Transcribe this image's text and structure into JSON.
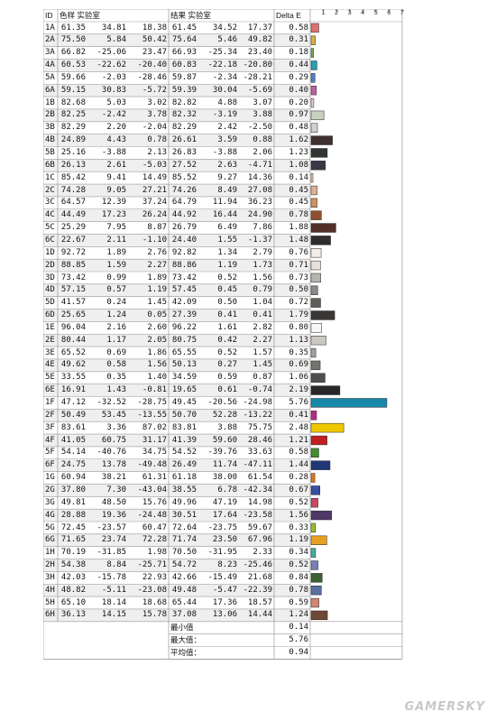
{
  "chart_data": {
    "type": "table",
    "headers": {
      "id": "ID",
      "lab_group": "色样 实验室",
      "result_group": "结果 实验室",
      "delta": "Delta E"
    },
    "x_ticks": [
      "1",
      "2",
      "3",
      "4",
      "5",
      "6",
      "7"
    ],
    "xlim": [
      0,
      7
    ],
    "rows": [
      {
        "id": "1A",
        "L": "61.35",
        "a": "34.81",
        "b": "18.38",
        "L2": "61.45",
        "a2": "34.52",
        "b2": "17.37",
        "de": 0.58,
        "color": "#e07070"
      },
      {
        "id": "2A",
        "L": "75.50",
        "a": "5.84",
        "b": "50.42",
        "L2": "75.64",
        "a2": "5.46",
        "b2": "49.82",
        "de": 0.31,
        "color": "#e0b040"
      },
      {
        "id": "3A",
        "L": "66.82",
        "a": "-25.06",
        "b": "23.47",
        "L2": "66.93",
        "a2": "-25.34",
        "b2": "23.40",
        "de": 0.18,
        "color": "#70b050"
      },
      {
        "id": "4A",
        "L": "60.53",
        "a": "-22.62",
        "b": "-20.40",
        "L2": "60.83",
        "a2": "-22.18",
        "b2": "-20.80",
        "de": 0.44,
        "color": "#20a0b0"
      },
      {
        "id": "5A",
        "L": "59.66",
        "a": "-2.03",
        "b": "-28.46",
        "L2": "59.87",
        "a2": "-2.34",
        "b2": "-28.21",
        "de": 0.29,
        "color": "#5080c0"
      },
      {
        "id": "6A",
        "L": "59.15",
        "a": "30.83",
        "b": "-5.72",
        "L2": "59.39",
        "a2": "30.04",
        "b2": "-5.69",
        "de": 0.4,
        "color": "#c060a0"
      },
      {
        "id": "1B",
        "L": "82.68",
        "a": "5.03",
        "b": "3.02",
        "L2": "82.82",
        "a2": "4.88",
        "b2": "3.07",
        "de": 0.2,
        "color": "#e8d0c8"
      },
      {
        "id": "2B",
        "L": "82.25",
        "a": "-2.42",
        "b": "3.78",
        "L2": "82.32",
        "a2": "-3.19",
        "b2": "3.88",
        "de": 0.97,
        "color": "#c8d0c0"
      },
      {
        "id": "3B",
        "L": "82.29",
        "a": "2.20",
        "b": "-2.04",
        "L2": "82.29",
        "a2": "2.42",
        "b2": "-2.50",
        "de": 0.48,
        "color": "#d0d0d8"
      },
      {
        "id": "4B",
        "L": "24.89",
        "a": "4.43",
        "b": "0.78",
        "L2": "26.61",
        "a2": "3.59",
        "b2": "0.88",
        "de": 1.62,
        "color": "#403030"
      },
      {
        "id": "5B",
        "L": "25.16",
        "a": "-3.88",
        "b": "2.13",
        "L2": "26.83",
        "a2": "-3.88",
        "b2": "2.06",
        "de": 1.23,
        "color": "#303830"
      },
      {
        "id": "6B",
        "L": "26.13",
        "a": "2.61",
        "b": "-5.03",
        "L2": "27.52",
        "a2": "2.63",
        "b2": "-4.71",
        "de": 1.08,
        "color": "#383848"
      },
      {
        "id": "1C",
        "L": "85.42",
        "a": "9.41",
        "b": "14.49",
        "L2": "85.52",
        "a2": "9.27",
        "b2": "14.36",
        "de": 0.14,
        "color": "#f0d0c0"
      },
      {
        "id": "2C",
        "L": "74.28",
        "a": "9.05",
        "b": "27.21",
        "L2": "74.26",
        "a2": "8.49",
        "b2": "27.08",
        "de": 0.45,
        "color": "#e0b090"
      },
      {
        "id": "3C",
        "L": "64.57",
        "a": "12.39",
        "b": "37.24",
        "L2": "64.79",
        "a2": "11.94",
        "b2": "36.23",
        "de": 0.45,
        "color": "#d09060"
      },
      {
        "id": "4C",
        "L": "44.49",
        "a": "17.23",
        "b": "26.24",
        "L2": "44.92",
        "a2": "16.44",
        "b2": "24.90",
        "de": 0.78,
        "color": "#905030"
      },
      {
        "id": "5C",
        "L": "25.29",
        "a": "7.95",
        "b": "8.87",
        "L2": "26.79",
        "a2": "6.49",
        "b2": "7.86",
        "de": 1.88,
        "color": "#503028"
      },
      {
        "id": "6C",
        "L": "22.67",
        "a": "2.11",
        "b": "-1.10",
        "L2": "24.40",
        "a2": "1.55",
        "b2": "-1.37",
        "de": 1.48,
        "color": "#302c30"
      },
      {
        "id": "1D",
        "L": "92.72",
        "a": "1.89",
        "b": "2.76",
        "L2": "92.82",
        "a2": "1.34",
        "b2": "2.79",
        "de": 0.76,
        "color": "#f4eee8"
      },
      {
        "id": "2D",
        "L": "88.85",
        "a": "1.59",
        "b": "2.27",
        "L2": "88.86",
        "a2": "1.19",
        "b2": "1.73",
        "de": 0.71,
        "color": "#e8e0dc"
      },
      {
        "id": "3D",
        "L": "73.42",
        "a": "0.99",
        "b": "1.89",
        "L2": "73.42",
        "a2": "0.52",
        "b2": "1.56",
        "de": 0.73,
        "color": "#b8b4b0"
      },
      {
        "id": "4D",
        "L": "57.15",
        "a": "0.57",
        "b": "1.19",
        "L2": "57.45",
        "a2": "0.45",
        "b2": "0.79",
        "de": 0.5,
        "color": "#8c8884"
      },
      {
        "id": "5D",
        "L": "41.57",
        "a": "0.24",
        "b": "1.45",
        "L2": "42.09",
        "a2": "0.50",
        "b2": "1.04",
        "de": 0.72,
        "color": "#625e5a"
      },
      {
        "id": "6D",
        "L": "25.65",
        "a": "1.24",
        "b": "0.05",
        "L2": "27.39",
        "a2": "0.41",
        "b2": "0.41",
        "de": 1.79,
        "color": "#3a3836"
      },
      {
        "id": "1E",
        "L": "96.04",
        "a": "2.16",
        "b": "2.60",
        "L2": "96.22",
        "a2": "1.61",
        "b2": "2.82",
        "de": 0.8,
        "color": "#faf6f2"
      },
      {
        "id": "2E",
        "L": "80.44",
        "a": "1.17",
        "b": "2.05",
        "L2": "80.75",
        "a2": "0.42",
        "b2": "2.27",
        "de": 1.13,
        "color": "#ccc8c4"
      },
      {
        "id": "3E",
        "L": "65.52",
        "a": "0.69",
        "b": "1.86",
        "L2": "65.55",
        "a2": "0.52",
        "b2": "1.57",
        "de": 0.35,
        "color": "#a4a09c"
      },
      {
        "id": "4E",
        "L": "49.62",
        "a": "0.58",
        "b": "1.56",
        "L2": "50.13",
        "a2": "0.27",
        "b2": "1.45",
        "de": 0.69,
        "color": "#767270"
      },
      {
        "id": "5E",
        "L": "33.55",
        "a": "0.35",
        "b": "1.40",
        "L2": "34.59",
        "a2": "0.59",
        "b2": "0.87",
        "de": 1.06,
        "color": "#504e4c"
      },
      {
        "id": "6E",
        "L": "16.91",
        "a": "1.43",
        "b": "-0.81",
        "L2": "19.65",
        "a2": "0.61",
        "b2": "-0.74",
        "de": 2.19,
        "color": "#282628"
      },
      {
        "id": "1F",
        "L": "47.12",
        "a": "-32.52",
        "b": "-28.75",
        "L2": "49.45",
        "a2": "-20.56",
        "b2": "-24.98",
        "de": 5.76,
        "color": "#1888a8"
      },
      {
        "id": "2F",
        "L": "50.49",
        "a": "53.45",
        "b": "-13.55",
        "L2": "50.70",
        "a2": "52.28",
        "b2": "-13.22",
        "de": 0.41,
        "color": "#c02888"
      },
      {
        "id": "3F",
        "L": "83.61",
        "a": "3.36",
        "b": "87.02",
        "L2": "83.81",
        "a2": "3.88",
        "b2": "75.75",
        "de": 2.48,
        "color": "#f0c800"
      },
      {
        "id": "4F",
        "L": "41.05",
        "a": "60.75",
        "b": "31.17",
        "L2": "41.39",
        "a2": "59.60",
        "b2": "28.46",
        "de": 1.21,
        "color": "#c02020"
      },
      {
        "id": "5F",
        "L": "54.14",
        "a": "-40.76",
        "b": "34.75",
        "L2": "54.52",
        "a2": "-39.76",
        "b2": "33.63",
        "de": 0.58,
        "color": "#409030"
      },
      {
        "id": "6F",
        "L": "24.75",
        "a": "13.78",
        "b": "-49.48",
        "L2": "26.49",
        "a2": "11.74",
        "b2": "-47.11",
        "de": 1.44,
        "color": "#203878"
      },
      {
        "id": "1G",
        "L": "60.94",
        "a": "38.21",
        "b": "61.31",
        "L2": "61.18",
        "a2": "38.00",
        "b2": "61.54",
        "de": 0.28,
        "color": "#e07818"
      },
      {
        "id": "2G",
        "L": "37.80",
        "a": "7.30",
        "b": "-43.04",
        "L2": "38.55",
        "a2": "6.78",
        "b2": "-42.34",
        "de": 0.67,
        "color": "#3850a0"
      },
      {
        "id": "3G",
        "L": "49.81",
        "a": "48.50",
        "b": "15.76",
        "L2": "49.96",
        "a2": "47.19",
        "b2": "14.98",
        "de": 0.52,
        "color": "#c84860"
      },
      {
        "id": "4G",
        "L": "28.88",
        "a": "19.36",
        "b": "-24.48",
        "L2": "30.51",
        "a2": "17.64",
        "b2": "-23.58",
        "de": 1.56,
        "color": "#503868"
      },
      {
        "id": "5G",
        "L": "72.45",
        "a": "-23.57",
        "b": "60.47",
        "L2": "72.64",
        "a2": "-23.75",
        "b2": "59.67",
        "de": 0.33,
        "color": "#98c030"
      },
      {
        "id": "6G",
        "L": "71.65",
        "a": "23.74",
        "b": "72.28",
        "L2": "71.74",
        "a2": "23.50",
        "b2": "67.96",
        "de": 1.19,
        "color": "#e8a020"
      },
      {
        "id": "1H",
        "L": "70.19",
        "a": "-31.85",
        "b": "1.98",
        "L2": "70.50",
        "a2": "-31.95",
        "b2": "2.33",
        "de": 0.34,
        "color": "#40b0a0"
      },
      {
        "id": "2H",
        "L": "54.38",
        "a": "8.84",
        "b": "-25.71",
        "L2": "54.72",
        "a2": "8.23",
        "b2": "-25.46",
        "de": 0.52,
        "color": "#7880b8"
      },
      {
        "id": "3H",
        "L": "42.03",
        "a": "-15.78",
        "b": "22.93",
        "L2": "42.66",
        "a2": "-15.49",
        "b2": "21.68",
        "de": 0.84,
        "color": "#3c6030"
      },
      {
        "id": "4H",
        "L": "48.82",
        "a": "-5.11",
        "b": "-23.08",
        "L2": "49.48",
        "a2": "-5.47",
        "b2": "-22.39",
        "de": 0.78,
        "color": "#5870a0"
      },
      {
        "id": "5H",
        "L": "65.10",
        "a": "18.14",
        "b": "18.68",
        "L2": "65.44",
        "a2": "17.36",
        "b2": "18.57",
        "de": 0.59,
        "color": "#d08870"
      },
      {
        "id": "6H",
        "L": "36.13",
        "a": "14.15",
        "b": "15.78",
        "L2": "37.08",
        "a2": "13.06",
        "b2": "14.44",
        "de": 1.24,
        "color": "#704838"
      }
    ],
    "summary": [
      {
        "label": "最小值",
        "value": "0.14"
      },
      {
        "label": "最大值：",
        "value": "5.76"
      },
      {
        "label": "平均值：",
        "value": "0.94"
      }
    ]
  },
  "watermark": "GAMERSKY"
}
